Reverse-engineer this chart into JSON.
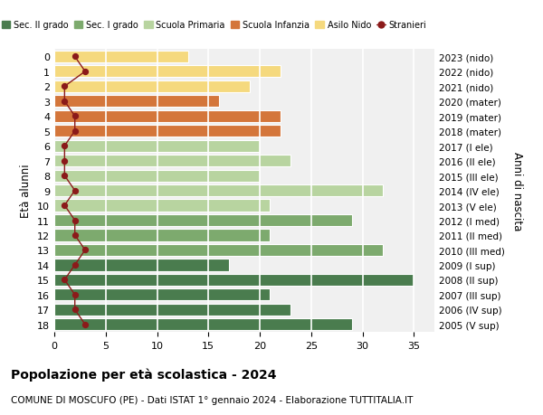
{
  "ages": [
    18,
    17,
    16,
    15,
    14,
    13,
    12,
    11,
    10,
    9,
    8,
    7,
    6,
    5,
    4,
    3,
    2,
    1,
    0
  ],
  "years": [
    "2005 (V sup)",
    "2006 (IV sup)",
    "2007 (III sup)",
    "2008 (II sup)",
    "2009 (I sup)",
    "2010 (III med)",
    "2011 (II med)",
    "2012 (I med)",
    "2013 (V ele)",
    "2014 (IV ele)",
    "2015 (III ele)",
    "2016 (II ele)",
    "2017 (I ele)",
    "2018 (mater)",
    "2019 (mater)",
    "2020 (mater)",
    "2021 (nido)",
    "2022 (nido)",
    "2023 (nido)"
  ],
  "values": [
    29,
    23,
    21,
    35,
    17,
    32,
    21,
    29,
    21,
    32,
    20,
    23,
    20,
    22,
    22,
    16,
    19,
    22,
    13
  ],
  "stranieri": [
    3,
    2,
    2,
    1,
    2,
    3,
    2,
    2,
    1,
    2,
    1,
    1,
    1,
    2,
    2,
    1,
    1,
    3,
    2
  ],
  "categories": {
    "sec2": [
      18,
      17,
      16,
      15,
      14
    ],
    "sec1": [
      13,
      12,
      11
    ],
    "primaria": [
      10,
      9,
      8,
      7,
      6
    ],
    "infanzia": [
      5,
      4,
      3
    ],
    "nido": [
      2,
      1,
      0
    ]
  },
  "colors": {
    "sec2": "#4a7c4e",
    "sec1": "#7daa6e",
    "primaria": "#b8d4a0",
    "infanzia": "#d4763b",
    "nido": "#f5d97e"
  },
  "ylabel_left": "Età alunni",
  "ylabel_right": "Anni di nascita",
  "title": "Popolazione per età scolastica - 2024",
  "subtitle": "COMUNE DI MOSCUFO (PE) - Dati ISTAT 1° gennaio 2024 - Elaborazione TUTTITALIA.IT",
  "xlim": [
    0,
    37
  ],
  "background_color": "#ffffff",
  "plot_bg_color": "#f0f0f0",
  "grid_color": "#ffffff",
  "stranieri_color": "#8b1a1a"
}
